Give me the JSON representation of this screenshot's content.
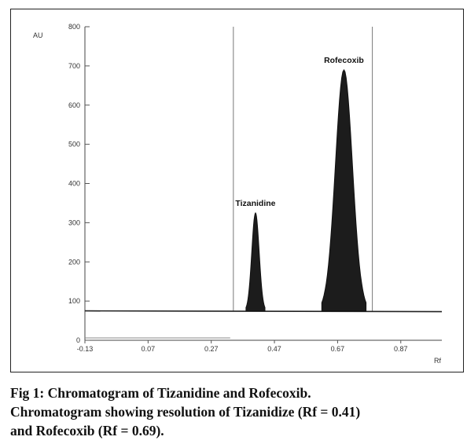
{
  "chart_data": {
    "type": "line",
    "ylabel": "AU",
    "xlabel": "Rf",
    "ylim": [
      0,
      800
    ],
    "xlim": [
      -0.13,
      1.0
    ],
    "y_ticks": [
      "0",
      "100",
      "200",
      "300",
      "400",
      "500",
      "600",
      "700",
      "800"
    ],
    "x_ticks": [
      "-0.13",
      "0.07",
      "0.27",
      "0.47",
      "0.67",
      "0.87"
    ],
    "x_tick_values": [
      -0.13,
      0.07,
      0.27,
      0.47,
      0.67,
      0.87
    ],
    "baseline": 75,
    "peaks": [
      {
        "name": "Tizanidine",
        "rf": 0.41,
        "height": 325,
        "start": 0.38,
        "end": 0.44
      },
      {
        "name": "Rofecoxib",
        "rf": 0.69,
        "height": 690,
        "start": 0.62,
        "end": 0.76
      }
    ],
    "markers": [
      0.34,
      0.78
    ],
    "grid": false
  },
  "caption": {
    "line1": "Fig 1: Chromatogram of Tizanidine and Rofecoxib.",
    "line2": "Chromatogram showing resolution of Tizanidize (Rf = 0.41)",
    "line3": "and Rofecoxib (Rf = 0.69)."
  }
}
